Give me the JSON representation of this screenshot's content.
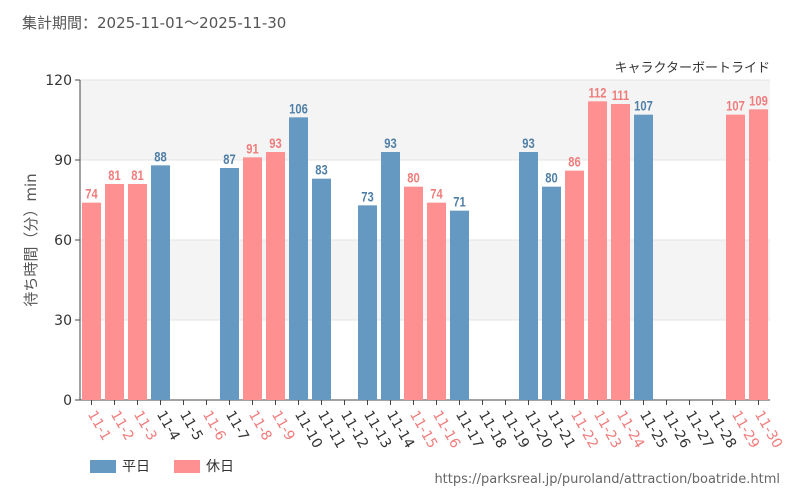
{
  "header": {
    "period": "集計期間：2025-11-01～2025-11-30"
  },
  "source_url": "https://parksreal.jp/puroland/attraction/boatride.html",
  "colors": {
    "weekday": "#6699c1",
    "holiday": "#ff9092",
    "holiday_label": "#f07c7c",
    "weekday_label": "#4f7fa6"
  },
  "chart_data": {
    "type": "bar",
    "title": "キャラクターボートライド",
    "xlabel": "",
    "ylabel": "待ち時間（分）min",
    "ylim": [
      0,
      120
    ],
    "yticks": [
      0,
      30,
      60,
      90,
      120
    ],
    "categories": [
      "11-1",
      "11-2",
      "11-3",
      "11-4",
      "11-5",
      "11-6",
      "11-7",
      "11-8",
      "11-9",
      "11-10",
      "11-11",
      "11-12",
      "11-13",
      "11-14",
      "11-15",
      "11-16",
      "11-17",
      "11-18",
      "11-19",
      "11-20",
      "11-21",
      "11-22",
      "11-23",
      "11-24",
      "11-25",
      "11-26",
      "11-27",
      "11-28",
      "11-29",
      "11-30"
    ],
    "values": [
      74,
      81,
      81,
      88,
      null,
      null,
      87,
      91,
      93,
      106,
      83,
      null,
      73,
      93,
      80,
      74,
      71,
      null,
      null,
      93,
      80,
      86,
      112,
      111,
      107,
      null,
      null,
      null,
      107,
      109
    ],
    "day_type": [
      "holiday",
      "holiday",
      "holiday",
      "weekday",
      "weekday",
      "holiday",
      "weekday",
      "holiday",
      "holiday",
      "weekday",
      "weekday",
      "weekday",
      "weekday",
      "weekday",
      "holiday",
      "holiday",
      "weekday",
      "weekday",
      "weekday",
      "weekday",
      "weekday",
      "holiday",
      "holiday",
      "holiday",
      "weekday",
      "weekday",
      "weekday",
      "weekday",
      "holiday",
      "holiday"
    ],
    "legend": [
      {
        "name": "平日",
        "key": "weekday"
      },
      {
        "name": "休日",
        "key": "holiday"
      }
    ]
  }
}
